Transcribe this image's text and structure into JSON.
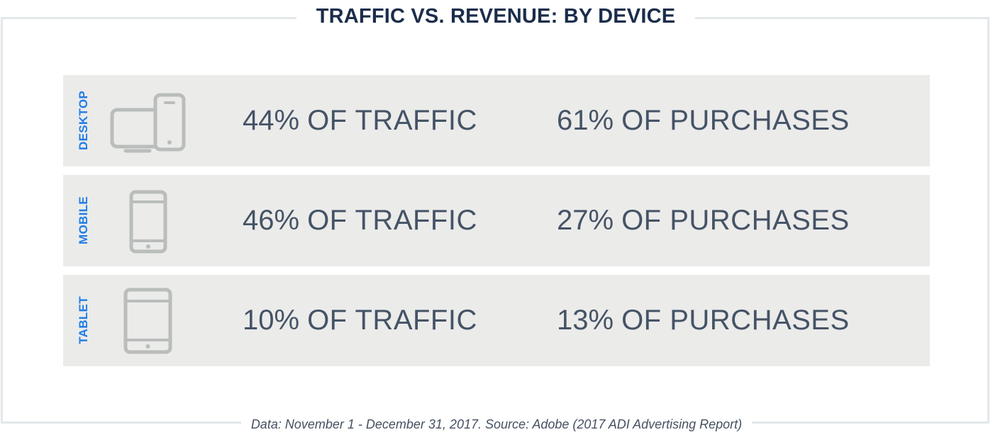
{
  "title": "TRAFFIC VS. REVENUE: BY DEVICE",
  "footnote": "Data: November 1 - December 31, 2017. Source: Adobe (2017 ADI Advertising Report)",
  "colors": {
    "title": "#1b2d4b",
    "device_label": "#1f7de6",
    "row_background": "#ebebea",
    "icon": "#b9bdbb",
    "stat_text": "#455366"
  },
  "chart_data": {
    "type": "table",
    "title": "TRAFFIC VS. REVENUE: BY DEVICE",
    "columns": [
      "OF TRAFFIC",
      "OF PURCHASES"
    ],
    "rows": [
      {
        "device": "DESKTOP",
        "icon": "desktop-and-phone-icon",
        "traffic_pct": "44%",
        "traffic_label": "OF TRAFFIC",
        "purchases_pct": "61%",
        "purchases_label": "OF PURCHASES"
      },
      {
        "device": "MOBILE",
        "icon": "mobile-phone-icon",
        "traffic_pct": "46%",
        "traffic_label": "OF TRAFFIC",
        "purchases_pct": "27%",
        "purchases_label": "OF PURCHASES"
      },
      {
        "device": "TABLET",
        "icon": "tablet-icon",
        "traffic_pct": "10%",
        "traffic_label": "OF TRAFFIC",
        "purchases_pct": "13%",
        "purchases_label": "OF PURCHASES"
      }
    ]
  }
}
